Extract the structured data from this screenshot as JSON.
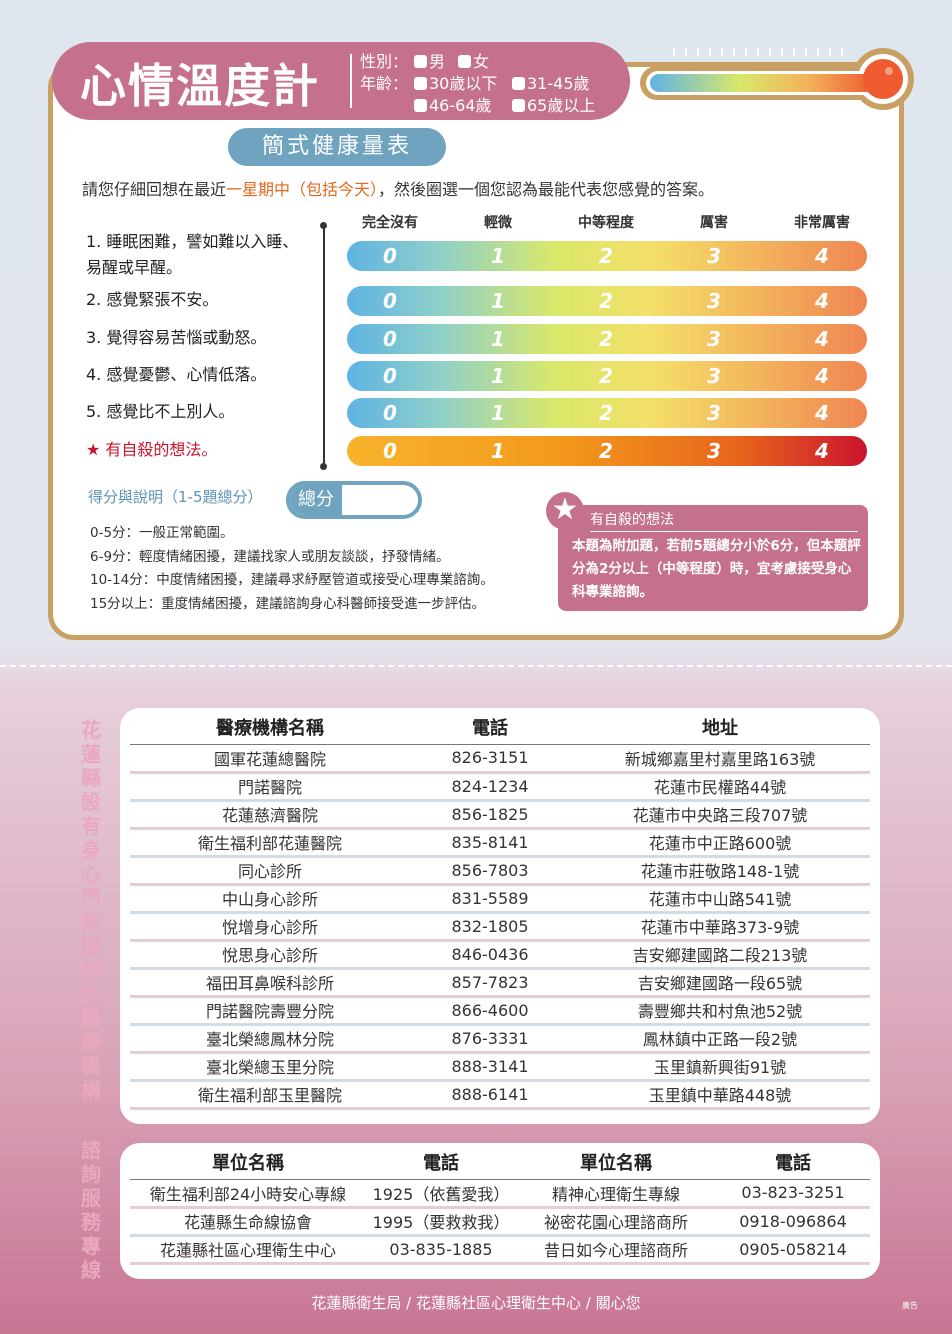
{
  "header": {
    "title": "心情溫度計",
    "gender_label": "性別：",
    "gender_options": [
      "男",
      "女"
    ],
    "age_label": "年齡：",
    "age_options": [
      "30歲以下",
      "31-45歲",
      "46-64歲",
      "65歲以上"
    ]
  },
  "subtitle": "簡式健康量表",
  "instruction": {
    "before": "請您仔細回想在最近",
    "highlight": "一星期中（包括今天）",
    "after": "，然後圈選一個您認為最能代表您感覺的答案。"
  },
  "scale_headers": [
    "完全沒有",
    "輕微",
    "中等程度",
    "厲害",
    "非常厲害"
  ],
  "scale_values": [
    "0",
    "1",
    "2",
    "3",
    "4"
  ],
  "items": [
    {
      "text": "1. 睡眠困難，譬如難以入睡、易醒或早醒。"
    },
    {
      "text": "2. 感覺緊張不安。"
    },
    {
      "text": "3. 覺得容易苦惱或動怒。"
    },
    {
      "text": "4. 感覺憂鬱、心情低落。"
    },
    {
      "text": "5. 感覺比不上別人。"
    },
    {
      "text": "★ 有自殺的想法。"
    }
  ],
  "colors": {
    "title_pink": "#c5708d",
    "subtitle_blue": "#6fa3c0",
    "border_gold": "#c9a064",
    "highlight_orange": "#e06a1f",
    "suicide_red": "#c9142e"
  },
  "score": {
    "label": "得分與說明（1-5題總分）",
    "total_label": "總分",
    "explanations": [
      "0-5分：一般正常範圍。",
      "6-9分：輕度情緒困擾，建議找家人或朋友談談，抒發情緒。",
      "10-14分：中度情緒困擾，建議尋求紓壓管道或接受心理專業諮詢。",
      "15分以上：重度情緒困擾，建議諮詢身心科醫師接受進一步評估。"
    ]
  },
  "suicide_note": {
    "title": "有自殺的想法",
    "body": "本題為附加題，若前5題總分小於6分，但本題評分為2分以上（中等程度）時，宜考慮接受身心科專業諮詢。"
  },
  "clinics": {
    "side_title": "花蓮縣設有身心門診服務之醫療機構",
    "headers": [
      "醫療機構名稱",
      "電話",
      "地址"
    ],
    "rows": [
      [
        "國軍花蓮總醫院",
        "826-3151",
        "新城鄉嘉里村嘉里路163號"
      ],
      [
        "門諾醫院",
        "824-1234",
        "花蓮市民權路44號"
      ],
      [
        "花蓮慈濟醫院",
        "856-1825",
        "花蓮市中央路三段707號"
      ],
      [
        "衛生福利部花蓮醫院",
        "835-8141",
        "花蓮市中正路600號"
      ],
      [
        "同心診所",
        "856-7803",
        "花蓮市莊敬路148-1號"
      ],
      [
        "中山身心診所",
        "831-5589",
        "花蓮市中山路541號"
      ],
      [
        "悅增身心診所",
        "832-1805",
        "花蓮市中華路373-9號"
      ],
      [
        "悅思身心診所",
        "846-0436",
        "吉安鄉建國路二段213號"
      ],
      [
        "福田耳鼻喉科診所",
        "857-7823",
        "吉安鄉建國路一段65號"
      ],
      [
        "門諾醫院壽豐分院",
        "866-4600",
        "壽豐鄉共和村魚池52號"
      ],
      [
        "臺北榮總鳳林分院",
        "876-3331",
        "鳳林鎮中正路一段2號"
      ],
      [
        "臺北榮總玉里分院",
        "888-3141",
        "玉里鎮新興街91號"
      ],
      [
        "衛生福利部玉里醫院",
        "888-6141",
        "玉里鎮中華路448號"
      ]
    ]
  },
  "hotlines": {
    "side_title": "諮詢服務專線",
    "headers": [
      "單位名稱",
      "電話",
      "單位名稱",
      "電話"
    ],
    "rows": [
      [
        "衛生福利部24小時安心專線",
        "1925（依舊愛我）",
        "精神心理衛生專線",
        "03-823-3251"
      ],
      [
        "花蓮縣生命線協會",
        "1995（要救救我）",
        "祕密花園心理諮商所",
        "0918-096864"
      ],
      [
        "花蓮縣社區心理衛生中心",
        "03-835-1885",
        "昔日如今心理諮商所",
        "0905-058214"
      ]
    ]
  },
  "footer": "花蓮縣衛生局 / 花蓮縣社區心理衛生中心 / 關心您",
  "ad_label": "廣告"
}
